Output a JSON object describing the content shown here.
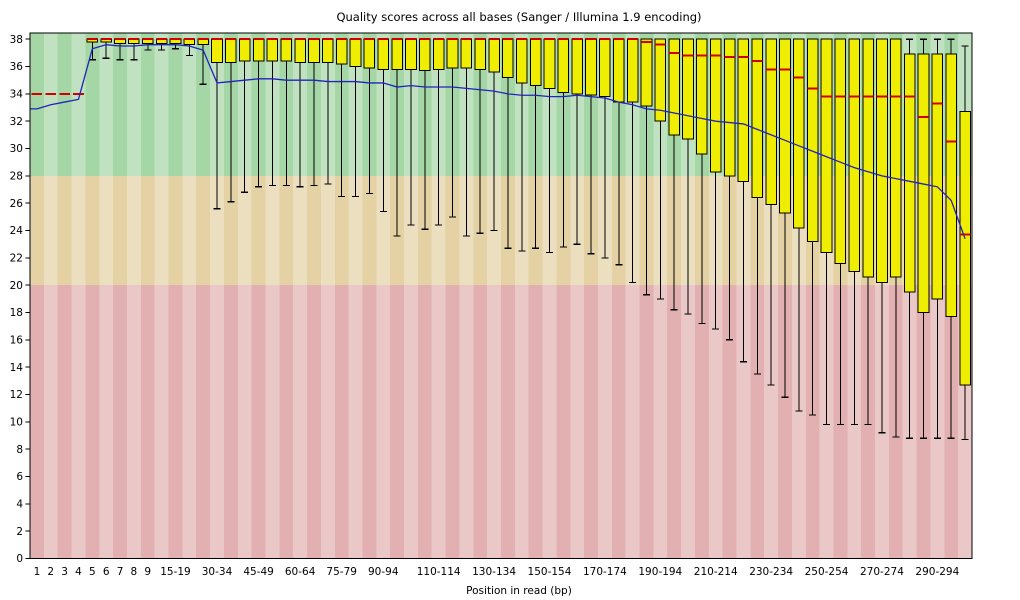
{
  "title": "Quality scores across all bases (Sanger / Illumina 1.9 encoding)",
  "x_axis": {
    "label": "Position in read (bp)"
  },
  "y_axis": {
    "min": 0,
    "max": 38,
    "tick_step": 2
  },
  "colors": {
    "box_fill": "#f0ee00",
    "box_border": "#000000",
    "median_line": "#d10000",
    "mean_line": "#2323bd",
    "whisker": "#000000",
    "zone_good_green": "#a5d6a5",
    "zone_warn_orange": "#e4d2a5",
    "zone_bad_red": "#e2b0b0",
    "column_stripe": "rgba(255,255,255,0.3)"
  },
  "chart_data": {
    "type": "boxplot",
    "title": "Quality scores across all bases (Sanger / Illumina 1.9 encoding)",
    "xlabel": "Position in read (bp)",
    "ylim": [
      0,
      38
    ],
    "grid": false,
    "legend": "none",
    "background_zones": [
      {
        "name": "good",
        "from": 28,
        "to": 38.4,
        "color": "#a5d6a5"
      },
      {
        "name": "warn",
        "from": 20,
        "to": 28,
        "color": "#e4d2a5"
      },
      {
        "name": "bad",
        "from": 0,
        "to": 20,
        "color": "#e2b0b0"
      }
    ],
    "x_tick_labels": [
      [
        0,
        "1"
      ],
      [
        1,
        "2"
      ],
      [
        2,
        "3"
      ],
      [
        3,
        "4"
      ],
      [
        4,
        "5"
      ],
      [
        5,
        "6"
      ],
      [
        6,
        "7"
      ],
      [
        7,
        "8"
      ],
      [
        8,
        "9"
      ],
      [
        10,
        "15-19"
      ],
      [
        13,
        "30-34"
      ],
      [
        16,
        "45-49"
      ],
      [
        19,
        "60-64"
      ],
      [
        22,
        "75-79"
      ],
      [
        25,
        "90-94"
      ],
      [
        29,
        "110-114"
      ],
      [
        33,
        "130-134"
      ],
      [
        37,
        "150-154"
      ],
      [
        41,
        "170-174"
      ],
      [
        45,
        "190-194"
      ],
      [
        49,
        "210-214"
      ],
      [
        53,
        "230-234"
      ],
      [
        57,
        "250-254"
      ],
      [
        61,
        "270-274"
      ],
      [
        65,
        "290-294"
      ]
    ],
    "slots_columns": [
      "label",
      "median",
      "q1",
      "q3",
      "whisker_low",
      "whisker_high",
      "mean"
    ],
    "slots": [
      [
        "1",
        34,
        34,
        34,
        34,
        34,
        32.9
      ],
      [
        "2",
        34,
        34,
        34,
        34,
        34,
        33.2
      ],
      [
        "3",
        34,
        34,
        34,
        34,
        34,
        33.4
      ],
      [
        "4",
        34,
        34,
        34,
        34,
        34,
        33.6
      ],
      [
        "5",
        38,
        37.8,
        38,
        36.5,
        38,
        37.3
      ],
      [
        "6",
        38,
        37.8,
        38,
        36.6,
        38,
        37.6
      ],
      [
        "7",
        38,
        37.7,
        38,
        36.5,
        38,
        37.5
      ],
      [
        "8",
        38,
        37.7,
        38,
        36.5,
        38,
        37.5
      ],
      [
        "9",
        38,
        37.7,
        38,
        37.2,
        38,
        37.6
      ],
      [
        "10-14",
        38,
        37.7,
        38,
        37.2,
        38,
        37.6
      ],
      [
        "15-19",
        38,
        37.7,
        38,
        37.3,
        38,
        37.6
      ],
      [
        "20-24",
        38,
        37.6,
        38,
        36.8,
        38,
        37.5
      ],
      [
        "25-29",
        38,
        37.6,
        38,
        34.7,
        38,
        37.2
      ],
      [
        "30-34",
        38,
        36.3,
        38,
        25.6,
        38,
        34.8
      ],
      [
        "35-39",
        38,
        36.3,
        38,
        26.1,
        38,
        34.9
      ],
      [
        "40-44",
        38,
        36.4,
        38,
        26.8,
        38,
        35.0
      ],
      [
        "45-49",
        38,
        36.4,
        38,
        27.2,
        38,
        35.1
      ],
      [
        "50-54",
        38,
        36.4,
        38,
        27.3,
        38,
        35.1
      ],
      [
        "55-59",
        38,
        36.4,
        38,
        27.3,
        38,
        35.0
      ],
      [
        "60-64",
        38,
        36.3,
        38,
        27.2,
        38,
        35.0
      ],
      [
        "65-69",
        38,
        36.3,
        38,
        27.3,
        38,
        35.0
      ],
      [
        "70-74",
        38,
        36.3,
        38,
        27.4,
        38,
        34.9
      ],
      [
        "75-79",
        38,
        36.2,
        38,
        26.5,
        38,
        34.9
      ],
      [
        "80-84",
        38,
        36.0,
        38,
        26.5,
        38,
        34.9
      ],
      [
        "85-89",
        38,
        35.9,
        38,
        26.7,
        38,
        34.8
      ],
      [
        "90-94",
        38,
        35.8,
        38,
        25.4,
        38,
        34.8
      ],
      [
        "95-99",
        38,
        35.8,
        38,
        23.6,
        38,
        34.5
      ],
      [
        "100-104",
        38,
        35.8,
        38,
        24.4,
        38,
        34.6
      ],
      [
        "105-109",
        38,
        35.7,
        38,
        24.1,
        38,
        34.5
      ],
      [
        "110-114",
        38,
        35.8,
        38,
        24.4,
        38,
        34.5
      ],
      [
        "115-119",
        38,
        35.9,
        38,
        25.0,
        38,
        34.5
      ],
      [
        "120-124",
        38,
        35.9,
        38,
        23.6,
        38,
        34.4
      ],
      [
        "125-129",
        38,
        35.8,
        38,
        23.8,
        38,
        34.3
      ],
      [
        "130-134",
        38,
        35.6,
        38,
        24.0,
        38,
        34.2
      ],
      [
        "135-139",
        38,
        35.2,
        38,
        22.7,
        38,
        34.0
      ],
      [
        "140-144",
        38,
        34.8,
        38,
        22.5,
        38,
        33.9
      ],
      [
        "145-149",
        38,
        34.6,
        38,
        22.7,
        38,
        33.9
      ],
      [
        "150-154",
        38,
        34.4,
        38,
        22.4,
        38,
        33.8
      ],
      [
        "155-159",
        38,
        34.1,
        38,
        22.8,
        38,
        33.8
      ],
      [
        "160-164",
        38,
        34.0,
        38,
        23.0,
        38,
        33.9
      ],
      [
        "165-169",
        38,
        33.9,
        38,
        22.3,
        38,
        33.8
      ],
      [
        "170-174",
        38,
        33.8,
        38,
        22.0,
        38,
        33.7
      ],
      [
        "175-179",
        38,
        33.4,
        38,
        21.5,
        38,
        33.4
      ],
      [
        "180-184",
        38,
        33.4,
        38,
        20.2,
        38,
        33.2
      ],
      [
        "185-189",
        37.8,
        33.1,
        38,
        19.3,
        38,
        32.9
      ],
      [
        "190-194",
        37.6,
        32.0,
        38,
        19.0,
        38,
        32.8
      ],
      [
        "195-199",
        37.0,
        31.0,
        38,
        18.2,
        38,
        32.6
      ],
      [
        "200-204",
        36.8,
        30.7,
        38,
        17.9,
        38,
        32.4
      ],
      [
        "205-209",
        36.8,
        29.6,
        38,
        17.2,
        38,
        32.2
      ],
      [
        "210-214",
        36.8,
        28.3,
        38,
        16.8,
        38,
        32.0
      ],
      [
        "215-219",
        36.7,
        28.0,
        38,
        16.0,
        38,
        31.9
      ],
      [
        "220-224",
        36.7,
        27.6,
        38,
        14.4,
        38,
        31.8
      ],
      [
        "225-229",
        36.4,
        26.4,
        38,
        13.5,
        38,
        31.4
      ],
      [
        "230-234",
        35.8,
        25.9,
        38,
        12.7,
        38,
        31.0
      ],
      [
        "235-239",
        35.8,
        25.3,
        38,
        11.8,
        38,
        30.6
      ],
      [
        "240-244",
        35.2,
        24.2,
        38,
        10.8,
        38,
        30.2
      ],
      [
        "245-249",
        34.4,
        23.2,
        38,
        10.5,
        38,
        29.8
      ],
      [
        "250-254",
        33.8,
        22.4,
        38,
        9.8,
        38,
        29.4
      ],
      [
        "255-259",
        33.8,
        21.6,
        38,
        9.8,
        38,
        29.0
      ],
      [
        "260-264",
        33.8,
        21.0,
        38,
        9.8,
        38,
        28.6
      ],
      [
        "265-269",
        33.8,
        20.6,
        38,
        9.8,
        38,
        28.3
      ],
      [
        "270-274",
        33.8,
        20.2,
        38,
        9.2,
        38,
        28.0
      ],
      [
        "275-279",
        33.8,
        20.6,
        38,
        8.9,
        38,
        27.8
      ],
      [
        "280-284",
        33.8,
        19.5,
        36.9,
        8.8,
        38,
        27.6
      ],
      [
        "285-289",
        32.3,
        18.0,
        36.9,
        8.8,
        38,
        27.4
      ],
      [
        "290-294",
        33.3,
        19.0,
        36.9,
        8.8,
        38,
        27.2
      ],
      [
        "295-299",
        30.5,
        17.7,
        36.9,
        8.8,
        38,
        26.2
      ],
      [
        "300-301",
        23.7,
        12.7,
        32.7,
        8.7,
        37.5,
        23.4
      ]
    ]
  }
}
